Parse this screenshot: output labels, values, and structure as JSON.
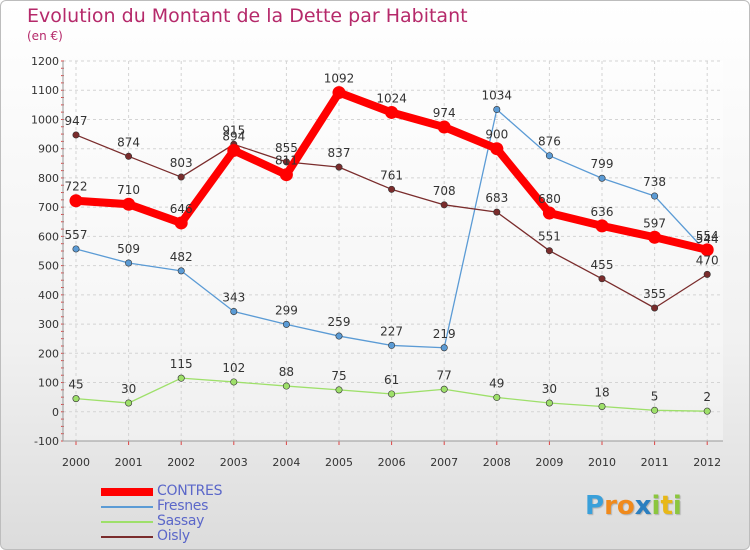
{
  "header": {
    "title": "Evolution du Montant de la Dette par Habitant",
    "subtitle": "(en €)"
  },
  "brand": {
    "text": "Proxiti",
    "letter_colors": [
      "#3aa0da",
      "#f08a1c",
      "#f08a1c",
      "#2b7fc0",
      "#8cc63f",
      "#e8b817",
      "#8cc63f"
    ]
  },
  "chart_data": {
    "type": "line",
    "title": "Evolution du Montant de la Dette par Habitant",
    "ylabel": "(en €)",
    "x": [
      "2000",
      "2001",
      "2002",
      "2003",
      "2004",
      "2005",
      "2006",
      "2007",
      "2008",
      "2009",
      "2010",
      "2011",
      "2012"
    ],
    "ylim": [
      -100,
      1200
    ],
    "yticks": [
      "-100",
      "0",
      "100",
      "200",
      "300",
      "400",
      "500",
      "600",
      "700",
      "800",
      "900",
      "1000",
      "1100",
      "1200"
    ],
    "grid": true,
    "legend_position": "bottom-left",
    "series": [
      {
        "name": "Fresnes",
        "color": "#5b9bd5",
        "values": [
          557,
          509,
          482,
          343,
          299,
          259,
          227,
          219,
          1034,
          876,
          799,
          738,
          544
        ],
        "labels": [
          "557",
          "509",
          "482",
          "343",
          "299",
          "259",
          "227",
          "219",
          "1034",
          "876",
          "799",
          "738",
          "544"
        ]
      },
      {
        "name": "Sassay",
        "color": "#9ee06a",
        "values": [
          45,
          30,
          115,
          102,
          88,
          75,
          61,
          77,
          49,
          30,
          18,
          5,
          2
        ],
        "labels": [
          "45",
          "30",
          "115",
          "102",
          "88",
          "75",
          "61",
          "77",
          "49",
          "30",
          "18",
          "5",
          "2"
        ]
      },
      {
        "name": "Oisly",
        "color": "#7a2c2c",
        "values": [
          947,
          874,
          803,
          915,
          855,
          837,
          761,
          708,
          683,
          551,
          455,
          355,
          470
        ],
        "labels": [
          "947",
          "874",
          "803",
          "915",
          "855",
          "837",
          "761",
          "708",
          "683",
          "551",
          "455",
          "355",
          "470"
        ]
      },
      {
        "name": "CONTRES",
        "color": "#ff0000",
        "values": [
          722,
          710,
          646,
          894,
          811,
          1092,
          1024,
          974,
          900,
          680,
          636,
          597,
          554
        ],
        "labels": [
          "722",
          "710",
          "646",
          "894",
          "811",
          "1092",
          "1024",
          "974",
          "900",
          "680",
          "636",
          "597",
          "554"
        ]
      }
    ],
    "legend_order": [
      "CONTRES",
      "Fresnes",
      "Sassay",
      "Oisly"
    ]
  }
}
